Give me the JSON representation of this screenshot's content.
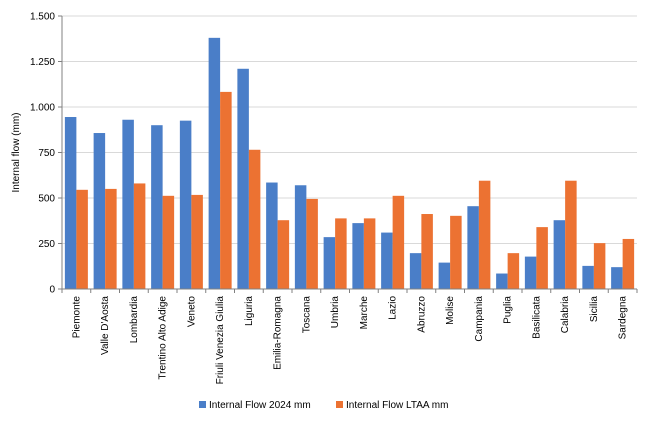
{
  "chart_data": {
    "type": "bar",
    "title": "",
    "xlabel": "",
    "ylabel": "Internal flow (mm)",
    "ylim": [
      0,
      1500
    ],
    "yticks": [
      0,
      250,
      500,
      750,
      1000,
      1250,
      1500
    ],
    "ytick_labels": [
      "0",
      "250",
      "500",
      "750",
      "1.000",
      "1.250",
      "1.500"
    ],
    "grid": true,
    "legend_position": "bottom",
    "categories": [
      "Piemonte",
      "Valle D'Aosta",
      "Lombardia",
      "Trentino Alto Adige",
      "Veneto",
      "Friuli Venezia Giulia",
      "Liguria",
      "Emilia-Romagna",
      "Toscana",
      "Umbria",
      "Marche",
      "Lazio",
      "Abruzzo",
      "Molise",
      "Campania",
      "Puglia",
      "Basilicata",
      "Calabria",
      "Sicilia",
      "Sardegna"
    ],
    "series": [
      {
        "name": "Internal Flow 2024 mm",
        "color": "#4a7ec8",
        "values": [
          945,
          857,
          930,
          900,
          925,
          1380,
          1210,
          585,
          570,
          285,
          362,
          310,
          197,
          145,
          455,
          85,
          178,
          378,
          127,
          120
        ]
      },
      {
        "name": "Internal Flow LTAA mm",
        "color": "#ec7232",
        "values": [
          545,
          550,
          580,
          512,
          517,
          1083,
          765,
          378,
          495,
          388,
          388,
          512,
          412,
          402,
          595,
          197,
          340,
          595,
          252,
          275
        ]
      }
    ]
  }
}
